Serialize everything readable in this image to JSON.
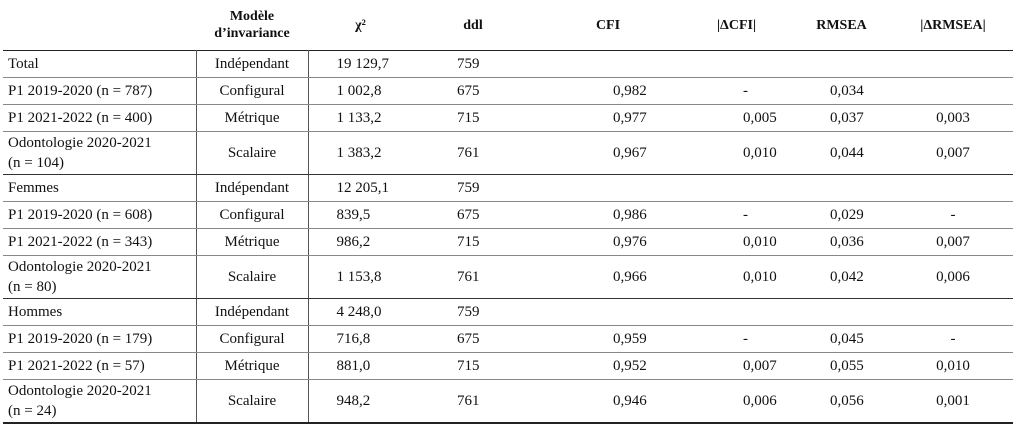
{
  "headers": {
    "model": "Modèle d’invariance",
    "model_line1": "Modèle",
    "model_line2": "d’invariance",
    "chi2": "χ²",
    "ddl": "ddl",
    "cfi": "CFI",
    "dcfi": "|ΔCFI|",
    "rmsea": "RMSEA",
    "drmsea": "|ΔRMSEA|"
  },
  "groups": [
    {
      "name": "Total",
      "rows": [
        {
          "label": "Total",
          "model": "Indépendant",
          "chi2": "19 129,7",
          "ddl": "759",
          "cfi": "",
          "dcfi": "",
          "rmsea": "",
          "drmsea": ""
        },
        {
          "label": "P1 2019-2020 (n = 787)",
          "model": "Configural",
          "chi2": "1 002,8",
          "ddl": "675",
          "cfi": "0,982",
          "dcfi": "-",
          "rmsea": "0,034",
          "drmsea": ""
        },
        {
          "label": "P1 2021-2022 (n = 400)",
          "model": "Métrique",
          "chi2": "1 133,2",
          "ddl": "715",
          "cfi": "0,977",
          "dcfi": "0,005",
          "rmsea": "0,037",
          "drmsea": "0,003"
        },
        {
          "label_line1": "Odontologie 2020-2021",
          "label_line2": "(n = 104)",
          "model": "Scalaire",
          "chi2": "1 383,2",
          "ddl": "761",
          "cfi": "0,967",
          "dcfi": "0,010",
          "rmsea": "0,044",
          "drmsea": "0,007"
        }
      ]
    },
    {
      "name": "Femmes",
      "rows": [
        {
          "label": "Femmes",
          "model": "Indépendant",
          "chi2": "12 205,1",
          "ddl": "759",
          "cfi": "",
          "dcfi": "",
          "rmsea": "",
          "drmsea": ""
        },
        {
          "label": "P1 2019-2020 (n = 608)",
          "model": "Configural",
          "chi2": "839,5",
          "ddl": "675",
          "cfi": "0,986",
          "dcfi": "-",
          "rmsea": "0,029",
          "drmsea": "-"
        },
        {
          "label": "P1 2021-2022 (n = 343)",
          "model": "Métrique",
          "chi2": "986,2",
          "ddl": "715",
          "cfi": "0,976",
          "dcfi": "0,010",
          "rmsea": "0,036",
          "drmsea": "0,007"
        },
        {
          "label_line1": "Odontologie 2020-2021",
          "label_line2": "(n = 80)",
          "model": "Scalaire",
          "chi2": "1 153,8",
          "ddl": "761",
          "cfi": "0,966",
          "dcfi": "0,010",
          "rmsea": "0,042",
          "drmsea": "0,006"
        }
      ]
    },
    {
      "name": "Hommes",
      "rows": [
        {
          "label": "Hommes",
          "model": "Indépendant",
          "chi2": "4 248,0",
          "ddl": "759",
          "cfi": "",
          "dcfi": "",
          "rmsea": "",
          "drmsea": ""
        },
        {
          "label": "P1 2019-2020 (n = 179)",
          "model": "Configural",
          "chi2": "716,8",
          "ddl": "675",
          "cfi": "0,959",
          "dcfi": "-",
          "rmsea": "0,045",
          "drmsea": "-"
        },
        {
          "label": "P1 2021-2022 (n = 57)",
          "model": "Métrique",
          "chi2": "881,0",
          "ddl": "715",
          "cfi": "0,952",
          "dcfi": "0,007",
          "rmsea": "0,055",
          "drmsea": "0,010"
        },
        {
          "label_line1": "Odontologie 2020-2021",
          "label_line2": "(n = 24)",
          "model": "Scalaire",
          "chi2": "948,2",
          "ddl": "761",
          "cfi": "0,946",
          "dcfi": "0,006",
          "rmsea": "0,056",
          "drmsea": "0,001"
        }
      ]
    }
  ]
}
